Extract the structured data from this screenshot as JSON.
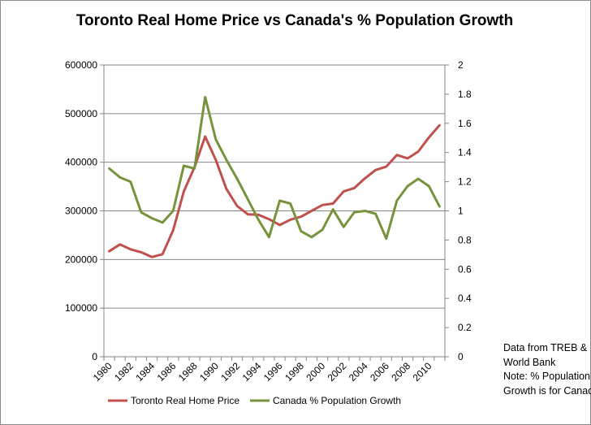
{
  "chart_data": {
    "type": "line",
    "title": "Toronto  Real Home Price vs Canada's  % Population  Growth",
    "x": [
      1980,
      1981,
      1982,
      1983,
      1984,
      1985,
      1986,
      1987,
      1988,
      1989,
      1990,
      1991,
      1992,
      1993,
      1994,
      1995,
      1996,
      1997,
      1998,
      1999,
      2000,
      2001,
      2002,
      2003,
      2004,
      2005,
      2006,
      2007,
      2008,
      2009,
      2010,
      2011
    ],
    "x_ticks": [
      "1980",
      "1982",
      "1984",
      "1986",
      "1988",
      "1990",
      "1992",
      "1994",
      "1996",
      "1998",
      "2000",
      "2002",
      "2004",
      "2006",
      "2008",
      "2010"
    ],
    "y_left_ticks": [
      "0",
      "100000",
      "200000",
      "300000",
      "400000",
      "500000",
      "600000"
    ],
    "y_right_ticks": [
      "0",
      "0.2",
      "0.4",
      "0.6",
      "0.8",
      "1",
      "1.2",
      "1.4",
      "1.6",
      "1.8",
      "2"
    ],
    "ylim_left": [
      0,
      600000
    ],
    "ylim_right": [
      0,
      2
    ],
    "grid": "horizontal",
    "legend_position": "bottom",
    "series": [
      {
        "name": "Toronto Real Home Price",
        "axis": "left",
        "color": "#c0504d",
        "values": [
          217000,
          231000,
          221000,
          215000,
          205000,
          211000,
          260000,
          340000,
          390000,
          453000,
          405000,
          345000,
          310000,
          293000,
          292000,
          283000,
          271000,
          282000,
          288000,
          300000,
          312000,
          315000,
          340000,
          347000,
          367000,
          384000,
          391000,
          415000,
          408000,
          422000,
          451000,
          476000
        ]
      },
      {
        "name": "Canada % Population Growth",
        "axis": "right",
        "color": "#77933c",
        "values": [
          1.29,
          1.23,
          1.2,
          0.99,
          0.95,
          0.92,
          1.0,
          1.31,
          1.29,
          1.78,
          1.49,
          1.35,
          1.22,
          1.08,
          0.94,
          0.82,
          1.07,
          1.05,
          0.86,
          0.82,
          0.87,
          1.01,
          0.89,
          0.99,
          1.0,
          0.98,
          0.81,
          1.07,
          1.17,
          1.22,
          1.17,
          1.03
        ]
      }
    ]
  },
  "note_lines": [
    "Data from TREB &",
    "World Bank",
    "Note: % Population",
    "Growth is for Canada"
  ]
}
